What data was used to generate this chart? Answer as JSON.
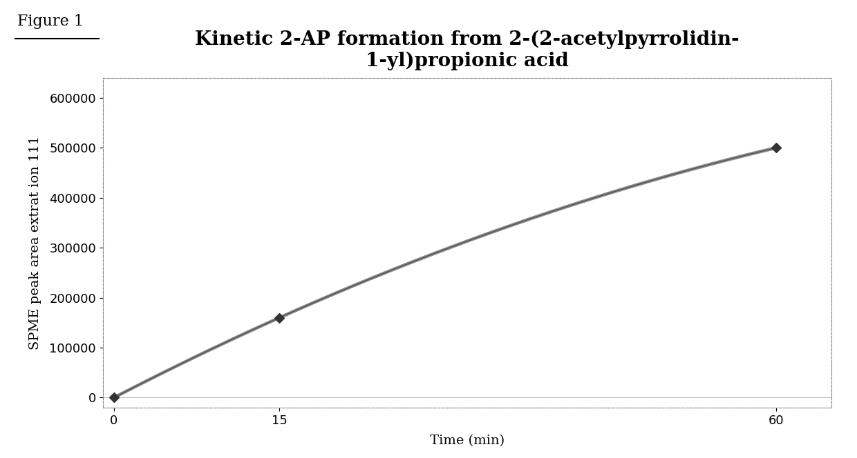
{
  "title_line1": "Kinetic 2-AP formation from 2-(2-acetylpyrrolidin-",
  "title_line2": "1-yl)propionic acid",
  "xlabel": "Time (min)",
  "ylabel": "SPME peak area extrat ion 111",
  "figure_label": "Figure 1",
  "x_data": [
    0,
    15,
    60
  ],
  "y_data": [
    0,
    160000,
    500000
  ],
  "xlim": [
    -1,
    65
  ],
  "ylim": [
    -20000,
    640000
  ],
  "yticks": [
    0,
    100000,
    200000,
    300000,
    400000,
    500000,
    600000
  ],
  "xticks": [
    0,
    15,
    60
  ],
  "line_color": "#555555",
  "marker_color": "#333333",
  "bg_color": "#ffffff",
  "plot_bg_color": "#ffffff",
  "title_fontsize": 20,
  "label_fontsize": 14,
  "tick_fontsize": 13,
  "figure_label_fontsize": 16
}
